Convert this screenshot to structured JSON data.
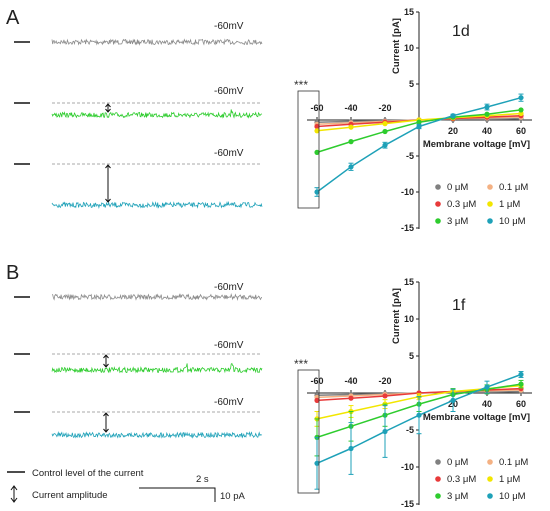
{
  "panels": [
    {
      "letter": "A",
      "traces": [
        {
          "voltage_label": "-60mV",
          "color": "#8c8c8c",
          "amplitude": "none"
        },
        {
          "voltage_label": "-60mV",
          "color": "#2ecc2e",
          "amplitude": "small"
        },
        {
          "voltage_label": "-60mV",
          "color": "#1ea1b8",
          "amplitude": "large"
        }
      ],
      "significance": "***",
      "chart_data": {
        "type": "line",
        "title": "1d",
        "xlabel": "Membrane voltage [mV]",
        "ylabel": "Current [pA]",
        "xlim": [
          -65,
          65
        ],
        "ylim": [
          -15,
          15
        ],
        "x_ticks": [
          "-60",
          "-40",
          "-20",
          "20",
          "40",
          "60"
        ],
        "y_ticks": [
          "15",
          "10",
          "5",
          "-5",
          "-10",
          "-15"
        ],
        "x": [
          -60,
          -40,
          -20,
          0,
          20,
          40,
          60
        ],
        "series": [
          {
            "name": "0 μM",
            "color": "#808080",
            "values": [
              -0.3,
              -0.2,
              -0.1,
              0,
              0.1,
              0.1,
              0.2
            ],
            "errors": [
              0,
              0,
              0,
              0,
              0,
              0,
              0
            ]
          },
          {
            "name": "0.1 μM",
            "color": "#f4b183",
            "values": [
              -0.6,
              -0.4,
              -0.2,
              0,
              0.2,
              0.3,
              0.4
            ],
            "errors": [
              0,
              0,
              0,
              0,
              0,
              0,
              0
            ]
          },
          {
            "name": "0.3 μM",
            "color": "#e83a3a",
            "values": [
              -0.9,
              -0.6,
              -0.3,
              0,
              0.2,
              0.4,
              0.6
            ],
            "errors": [
              0,
              0,
              0,
              0,
              0,
              0,
              0
            ]
          },
          {
            "name": "1 μM",
            "color": "#f2e600",
            "values": [
              -1.5,
              -1.0,
              -0.5,
              0,
              0.3,
              0.6,
              0.9
            ],
            "errors": [
              0,
              0,
              0,
              0,
              0,
              0,
              0
            ]
          },
          {
            "name": "3 μM",
            "color": "#2ecc2e",
            "values": [
              -4.5,
              -3.0,
              -1.6,
              -0.3,
              0.4,
              0.8,
              1.4
            ],
            "errors": [
              0,
              0,
              0,
              0,
              0,
              0,
              0
            ]
          },
          {
            "name": "10 μM",
            "color": "#1ea1b8",
            "values": [
              -10,
              -6.5,
              -3.5,
              -0.9,
              0.6,
              1.8,
              3.1
            ],
            "errors": [
              0.6,
              0.5,
              0.4,
              0.3,
              0.2,
              0.4,
              0.5
            ]
          }
        ],
        "legend": {
          "placement": "bottom-right",
          "columns": 2
        }
      }
    },
    {
      "letter": "B",
      "traces": [
        {
          "voltage_label": "-60mV",
          "color": "#8c8c8c",
          "amplitude": "none"
        },
        {
          "voltage_label": "-60mV",
          "color": "#2ecc2e",
          "amplitude": "medium"
        },
        {
          "voltage_label": "-60mV",
          "color": "#1ea1b8",
          "amplitude": "medium"
        }
      ],
      "significance": "***",
      "chart_data": {
        "type": "line",
        "title": "1f",
        "xlabel": "Membrane voltage [mV]",
        "ylabel": "Current [pA]",
        "xlim": [
          -65,
          65
        ],
        "ylim": [
          -15,
          15
        ],
        "x_ticks": [
          "-60",
          "-40",
          "-20",
          "20",
          "40",
          "60"
        ],
        "y_ticks": [
          "15",
          "10",
          "5",
          "-5",
          "-10",
          "-15"
        ],
        "x": [
          -60,
          -40,
          -20,
          0,
          20,
          40,
          60
        ],
        "series": [
          {
            "name": "0 μM",
            "color": "#808080",
            "values": [
              -0.3,
              -0.2,
              -0.1,
              0,
              0.1,
              0.1,
              0.2
            ],
            "errors": [
              0,
              0,
              0,
              0,
              0,
              0,
              0
            ]
          },
          {
            "name": "0.1 μM",
            "color": "#f4b183",
            "values": [
              -0.6,
              -0.4,
              -0.2,
              0,
              0.2,
              0.3,
              0.4
            ],
            "errors": [
              0,
              0,
              0,
              0,
              0,
              0,
              0
            ]
          },
          {
            "name": "0.3 μM",
            "color": "#e83a3a",
            "values": [
              -1.0,
              -0.7,
              -0.4,
              0,
              0.2,
              0.4,
              0.6
            ],
            "errors": [
              0,
              0,
              0,
              0,
              0,
              0,
              0
            ]
          },
          {
            "name": "1 μM",
            "color": "#f2e600",
            "values": [
              -3.5,
              -2.5,
              -1.5,
              -0.5,
              0.2,
              0.6,
              1.0
            ],
            "errors": [
              1.0,
              0.8,
              0.6,
              0.4,
              0.3,
              0.3,
              0.3
            ]
          },
          {
            "name": "3 μM",
            "color": "#2ecc2e",
            "values": [
              -6.0,
              -4.5,
              -3.0,
              -1.5,
              -0.2,
              0.5,
              1.2
            ],
            "errors": [
              2.5,
              2.0,
              1.5,
              1.0,
              0.8,
              0.6,
              0.5
            ]
          },
          {
            "name": "10 μM",
            "color": "#1ea1b8",
            "values": [
              -9.5,
              -7.5,
              -5.2,
              -3.0,
              -1.0,
              0.8,
              2.5
            ],
            "errors": [
              3.5,
              3.5,
              3.5,
              2.5,
              1.5,
              0.8,
              0.4
            ]
          }
        ],
        "legend": {
          "placement": "bottom-right",
          "columns": 2
        }
      }
    }
  ],
  "footer_legend": {
    "control_level": "Control level of the current",
    "amplitude": "Current amplitude"
  },
  "scale_bar": {
    "time": "2 s",
    "current": "10 pA"
  }
}
